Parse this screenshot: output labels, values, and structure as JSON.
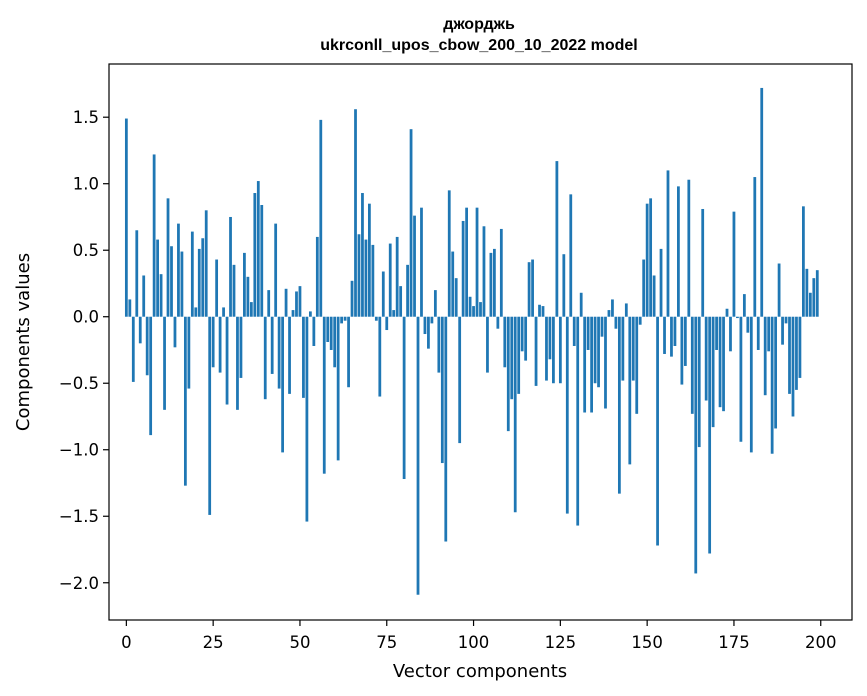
{
  "chart_data": {
    "type": "bar",
    "title": "джорджь",
    "subtitle": "ukrconll_upos_cbow_200_10_2022 model",
    "xlabel": "Vector components",
    "ylabel": "Components values",
    "xlim": [
      -5,
      209
    ],
    "ylim": [
      -2.28,
      1.9
    ],
    "xticks": [
      0,
      25,
      50,
      75,
      100,
      125,
      150,
      175,
      200
    ],
    "yticks": [
      -2.0,
      -1.5,
      -1.0,
      -0.5,
      0.0,
      0.5,
      1.0,
      1.5
    ],
    "ytick_labels": [
      "−2.0",
      "−1.5",
      "−1.0",
      "−0.5",
      "0.0",
      "0.5",
      "1.0",
      "1.5"
    ],
    "xtick_labels": [
      "0",
      "25",
      "50",
      "75",
      "100",
      "125",
      "150",
      "175",
      "200"
    ],
    "bar_color": "#1f77b4",
    "grid": false,
    "legend": false,
    "series": [
      {
        "values": [
          1.49,
          0.13,
          -0.49,
          0.65,
          -0.2,
          0.31,
          -0.44,
          -0.89,
          1.22,
          0.58,
          0.32,
          -0.7,
          0.89,
          0.53,
          -0.23,
          0.7,
          0.49,
          -1.27,
          -0.54,
          0.64,
          0.07,
          0.51,
          0.59,
          0.8,
          -1.49,
          -0.38,
          0.43,
          -0.42,
          0.07,
          -0.66,
          0.75,
          0.39,
          -0.7,
          -0.46,
          0.48,
          0.3,
          0.11,
          0.93,
          1.02,
          0.84,
          -0.62,
          0.2,
          -0.43,
          0.7,
          -0.54,
          -1.02,
          0.21,
          -0.58,
          0.05,
          0.19,
          0.23,
          -0.61,
          -1.54,
          0.04,
          -0.22,
          0.6,
          1.48,
          -1.18,
          -0.19,
          -0.25,
          -0.38,
          -1.08,
          -0.05,
          -0.03,
          -0.53,
          0.27,
          1.56,
          0.62,
          0.93,
          0.58,
          0.85,
          0.54,
          -0.03,
          -0.6,
          0.34,
          -0.1,
          0.55,
          0.05,
          0.6,
          0.23,
          -1.22,
          0.39,
          1.41,
          0.76,
          -2.09,
          0.82,
          -0.13,
          -0.24,
          -0.05,
          0.2,
          -0.42,
          -1.1,
          -1.69,
          0.95,
          0.49,
          0.29,
          -0.95,
          0.72,
          0.82,
          0.15,
          0.08,
          0.82,
          0.11,
          0.68,
          -0.42,
          0.48,
          0.51,
          -0.09,
          0.66,
          -0.38,
          -0.86,
          -0.62,
          -1.47,
          -0.58,
          -0.26,
          -0.33,
          0.41,
          0.43,
          -0.52,
          0.09,
          0.08,
          -0.48,
          -0.32,
          -0.5,
          1.17,
          -0.5,
          0.47,
          -1.48,
          0.92,
          -0.22,
          -1.57,
          0.18,
          -0.72,
          -0.25,
          -0.72,
          -0.5,
          -0.53,
          -0.15,
          -0.69,
          0.05,
          0.13,
          -0.09,
          -1.33,
          -0.48,
          0.1,
          -1.11,
          -0.48,
          -0.73,
          -0.06,
          0.43,
          0.85,
          0.89,
          0.31,
          -1.72,
          0.51,
          -0.28,
          1.1,
          -0.3,
          -0.22,
          0.98,
          -0.51,
          -0.37,
          1.03,
          -0.73,
          -1.93,
          -0.98,
          0.81,
          -0.63,
          -1.78,
          -0.83,
          -0.25,
          -0.68,
          -0.71,
          0.06,
          -0.26,
          0.79,
          -0.01,
          -0.94,
          0.17,
          -0.12,
          -1.02,
          1.05,
          -0.25,
          1.72,
          -0.59,
          -0.26,
          -1.03,
          -0.84,
          0.4,
          -0.21,
          -0.05,
          -0.58,
          -0.75,
          -0.55,
          -0.46,
          0.83,
          0.36,
          0.18,
          0.29,
          0.35
        ]
      }
    ]
  }
}
